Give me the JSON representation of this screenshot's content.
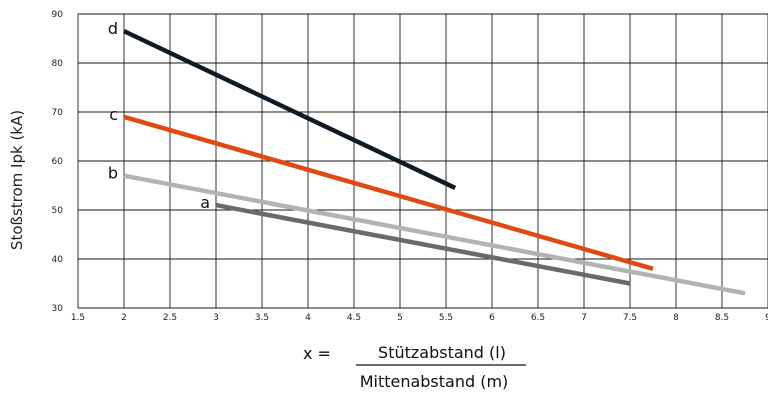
{
  "chart_data": {
    "type": "line",
    "ylabel": "Stoßstrom Ipk (kA)",
    "x_formula": {
      "prefix": "x =",
      "numerator": "Stützabstand (l)",
      "denominator": "Mittenabstand (m)"
    },
    "xlim": [
      1.5,
      9
    ],
    "ylim": [
      30,
      90
    ],
    "x_ticks": [
      1.5,
      2,
      2.5,
      3,
      3.5,
      4,
      4.5,
      5,
      5.5,
      6,
      6.5,
      7,
      7.5,
      8,
      8.5,
      9
    ],
    "y_ticks": [
      30,
      40,
      50,
      60,
      70,
      80,
      90
    ],
    "grid": true,
    "series": [
      {
        "name": "d",
        "color": "#0f1a24",
        "x": [
          2,
          5.6
        ],
        "y": [
          86.5,
          54.5
        ]
      },
      {
        "name": "c",
        "color": "#e04a12",
        "x": [
          2,
          7.75
        ],
        "y": [
          69,
          38
        ]
      },
      {
        "name": "b",
        "color": "#b3b3b3",
        "x": [
          2,
          8.75
        ],
        "y": [
          57,
          33
        ]
      },
      {
        "name": "a",
        "color": "#6a6a6a",
        "x": [
          3,
          7.5
        ],
        "y": [
          51,
          35
        ]
      }
    ]
  }
}
